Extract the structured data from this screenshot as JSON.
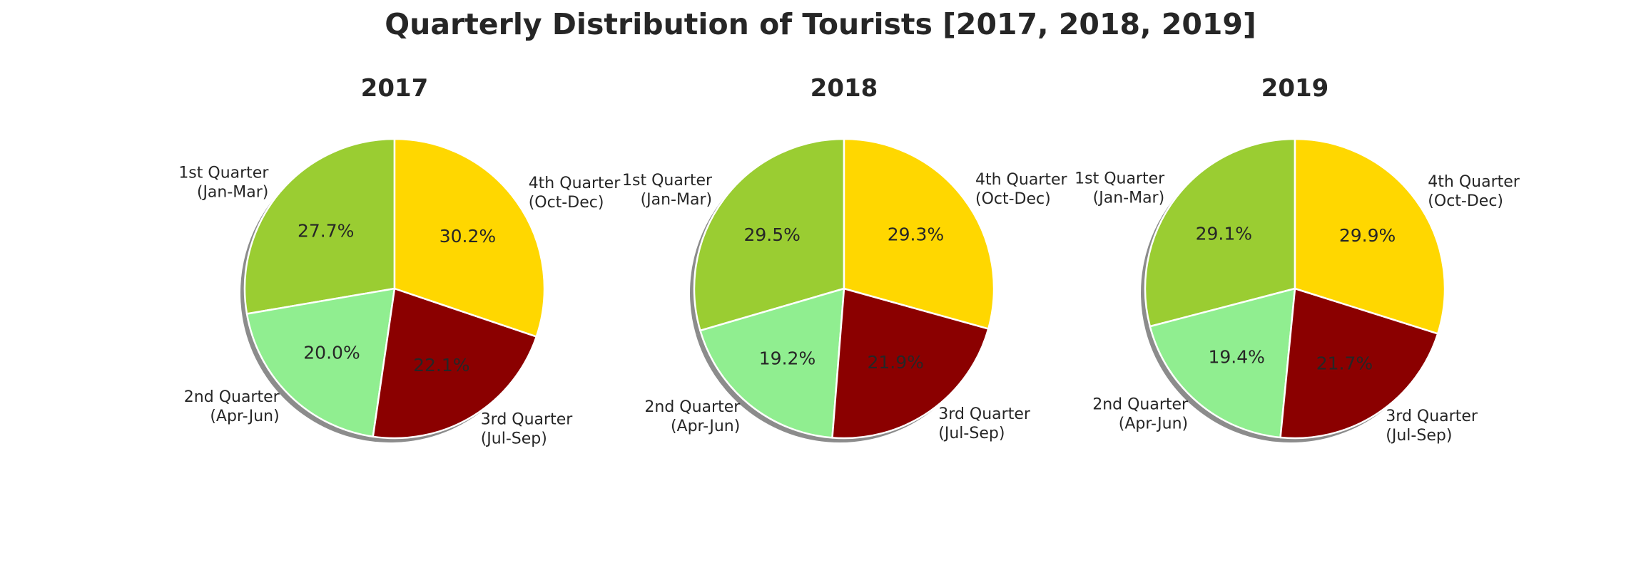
{
  "chart_data": {
    "type": "pie",
    "title": "Quarterly Distribution of Tourists [2017, 2018, 2019]",
    "categories": [
      "1st Quarter\n(Jan-Mar)",
      "2nd Quarter\n(Apr-Jun)",
      "3rd Quarter\n(Jul-Sep)",
      "4th Quarter\n(Oct-Dec)"
    ],
    "colors": [
      "#9ACD32",
      "#90EE90",
      "#8B0000",
      "#FFD700"
    ],
    "shadow": true,
    "counterclockwise": true,
    "start_angle_deg": 90,
    "charts": [
      {
        "title": "2017",
        "values": [
          27.7,
          20.0,
          22.1,
          30.2
        ],
        "labels": [
          "27.7%",
          "20.0%",
          "22.1%",
          "30.2%"
        ]
      },
      {
        "title": "2018",
        "values": [
          29.5,
          19.2,
          21.9,
          29.3
        ],
        "labels": [
          "29.5%",
          "19.2%",
          "21.9%",
          "29.3%"
        ]
      },
      {
        "title": "2019",
        "values": [
          29.1,
          19.4,
          21.7,
          29.9
        ],
        "labels": [
          "29.1%",
          "19.4%",
          "21.7%",
          "29.9%"
        ]
      }
    ]
  }
}
